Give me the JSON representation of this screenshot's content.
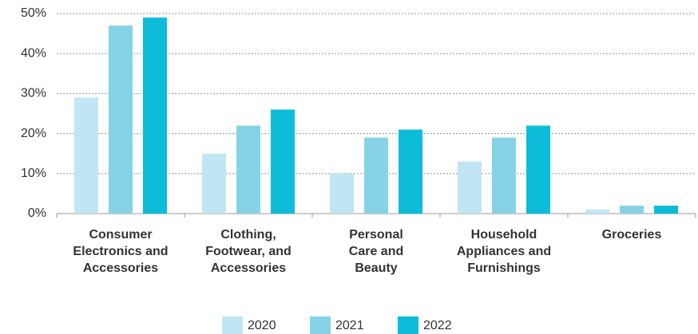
{
  "chart_data": {
    "type": "bar",
    "categories": [
      "Consumer\nElectronics and\nAccessories",
      "Clothing,\nFootwear, and\nAccessories",
      "Personal\nCare and\nBeauty",
      "Household\nAppliances and\nFurnishings",
      "Groceries"
    ],
    "series": [
      {
        "name": "2020",
        "color": "#bfe6f2",
        "values": [
          29,
          15,
          10,
          13,
          1
        ]
      },
      {
        "name": "2021",
        "color": "#86d3e6",
        "values": [
          47,
          22,
          19,
          19,
          2
        ]
      },
      {
        "name": "2022",
        "color": "#0dbcd9",
        "values": [
          49,
          26,
          21,
          22,
          2
        ]
      }
    ],
    "ylim": [
      0,
      50
    ],
    "yticks": [
      {
        "value": 0,
        "label": "0%"
      },
      {
        "value": 10,
        "label": "10%"
      },
      {
        "value": 20,
        "label": "20%"
      },
      {
        "value": 30,
        "label": "30%"
      },
      {
        "value": 40,
        "label": "40%"
      },
      {
        "value": 50,
        "label": "50%"
      }
    ],
    "grid": true
  }
}
